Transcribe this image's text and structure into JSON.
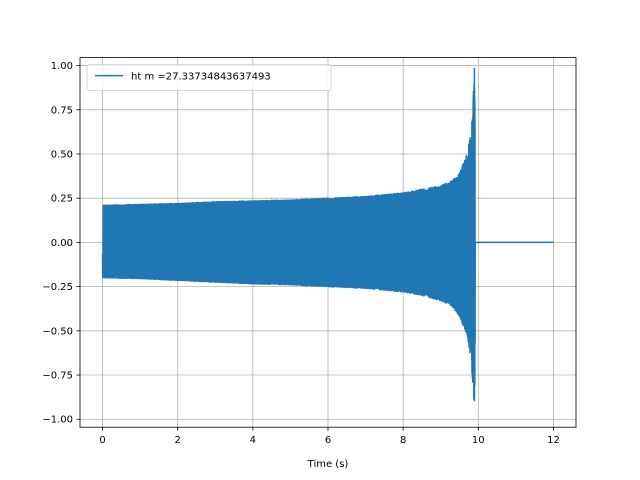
{
  "chart_data": {
    "type": "line",
    "title": "",
    "xlabel": "Time (s)",
    "ylabel": "",
    "xlim": [
      -0.6,
      12.6
    ],
    "ylim": [
      -1.045,
      1.045
    ],
    "x_ticks": [
      0,
      2,
      4,
      6,
      8,
      10,
      12
    ],
    "x_tick_labels": [
      "0",
      "2",
      "4",
      "6",
      "8",
      "10",
      "12"
    ],
    "y_ticks": [
      1.0,
      0.75,
      0.5,
      0.25,
      0.0,
      -0.25,
      -0.5,
      -0.75,
      -1.0
    ],
    "y_tick_labels": [
      "1.00",
      "0.75",
      "0.50",
      "0.25",
      "0.00",
      "−0.25",
      "−0.50",
      "−0.75",
      "−1.00"
    ],
    "grid": true,
    "legend_position": "top-left",
    "series": [
      {
        "name": "ht m =27.33734843637493",
        "color": "#1f77b4",
        "envelope": {
          "time": [
            0,
            1,
            2,
            3,
            4,
            5,
            6,
            7,
            8,
            8.5,
            9,
            9.3,
            9.5,
            9.7,
            9.8,
            9.85,
            9.9,
            9.95,
            10.0,
            12.0
          ],
          "upper": [
            0.21,
            0.215,
            0.22,
            0.23,
            0.235,
            0.24,
            0.25,
            0.26,
            0.28,
            0.3,
            0.32,
            0.35,
            0.39,
            0.5,
            0.62,
            0.75,
            1.0,
            0.0,
            0.0,
            0.0
          ],
          "lower": [
            -0.2,
            -0.205,
            -0.215,
            -0.225,
            -0.235,
            -0.24,
            -0.25,
            -0.26,
            -0.28,
            -0.3,
            -0.33,
            -0.36,
            -0.42,
            -0.52,
            -0.65,
            -0.8,
            -0.94,
            0.0,
            0.0,
            0.0
          ]
        },
        "start_value": -0.16,
        "merger_time": 9.92,
        "end_time": 12.0
      }
    ]
  }
}
